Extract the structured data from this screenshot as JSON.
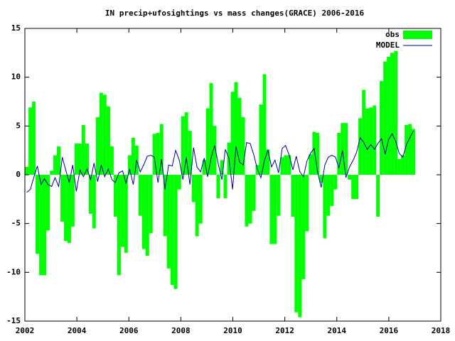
{
  "chart_data": {
    "type": "bar",
    "title": "IN precip+ufosightings vs mass changes(GRACE) 2006-2016",
    "x": [
      2002.07,
      2002.21,
      2002.34,
      2002.48,
      2002.62,
      2002.75,
      2002.89,
      2003.03,
      2003.16,
      2003.3,
      2003.44,
      2003.57,
      2003.71,
      2003.84,
      2003.98,
      2004.12,
      2004.25,
      2004.39,
      2004.53,
      2004.66,
      2004.8,
      2004.94,
      2005.07,
      2005.21,
      2005.35,
      2005.48,
      2005.62,
      2005.76,
      2005.89,
      2006.03,
      2006.17,
      2006.3,
      2006.44,
      2006.57,
      2006.71,
      2006.85,
      2006.98,
      2007.12,
      2007.26,
      2007.39,
      2007.53,
      2007.67,
      2007.8,
      2007.94,
      2008.08,
      2008.21,
      2008.35,
      2008.49,
      2008.62,
      2008.76,
      2008.9,
      2009.03,
      2009.17,
      2009.3,
      2009.44,
      2009.58,
      2009.71,
      2009.85,
      2009.99,
      2010.12,
      2010.26,
      2010.4,
      2010.53,
      2010.67,
      2010.81,
      2010.94,
      2011.08,
      2011.22,
      2011.35,
      2011.49,
      2011.62,
      2011.76,
      2011.9,
      2012.03,
      2012.17,
      2012.31,
      2012.44,
      2012.58,
      2012.72,
      2012.85,
      2012.99,
      2013.13,
      2013.26,
      2013.4,
      2013.54,
      2013.67,
      2013.81,
      2013.95,
      2014.08,
      2014.22,
      2014.35,
      2014.49,
      2014.63,
      2014.76,
      2014.9,
      2015.04,
      2015.17,
      2015.31,
      2015.45,
      2015.58,
      2015.72,
      2015.86,
      2015.99,
      2016.13,
      2016.27,
      2016.4,
      2016.54,
      2016.68,
      2016.81,
      2016.95
    ],
    "series": [
      {
        "name": "obs",
        "type": "bar",
        "color": "#00ff00",
        "values": [
          0.8,
          6.9,
          7.5,
          -8.1,
          -10.3,
          -10.3,
          -5.7,
          0.4,
          2.0,
          2.9,
          -4.8,
          -6.8,
          -7.0,
          -5.3,
          3.2,
          3.2,
          5.1,
          3.2,
          -4,
          -5.5,
          5.9,
          8.4,
          8.2,
          7.0,
          2.9,
          -4.3,
          -10.3,
          -7.4,
          -8.0,
          2,
          3.8,
          3.0,
          -4.2,
          -7.6,
          -8.3,
          -6,
          4.2,
          4.3,
          5.2,
          -6.3,
          -9.6,
          -11.3,
          -11.7,
          -1.5,
          6.0,
          6.4,
          4.5,
          -2.8,
          -6.3,
          -5,
          1.5,
          6.8,
          9.4,
          5,
          -2.4,
          1.5,
          -2.4,
          3.3,
          8.5,
          9.5,
          7.9,
          5.9,
          -5.3,
          -5,
          -3.7,
          1,
          7.2,
          10.3,
          2.6,
          -7.1,
          -7.1,
          -4.2,
          1.8,
          2.0,
          2.0,
          -4.3,
          -14.1,
          -14.6,
          -10.7,
          -5.8,
          2.1,
          4.4,
          4.3,
          -0.8,
          -6.5,
          -4.2,
          -3.2,
          -1.5,
          4.3,
          5.3,
          5.3,
          -0.5,
          -2.5,
          -2.5,
          5.8,
          8.7,
          6.8,
          6.9,
          7.1,
          -4.3,
          9.6,
          11.6,
          12.1,
          12.5,
          12.7,
          1.6,
          2.0,
          5.1,
          5.2,
          4.7
        ]
      },
      {
        "name": "MODEL",
        "type": "line",
        "color": "#0000a0",
        "values": [
          -1.8,
          -1.5,
          -0.3,
          0.9,
          -1,
          -0.4,
          -1,
          -1.2,
          -0.3,
          -1.2,
          1.8,
          0.5,
          -0.8,
          1.0,
          -1.7,
          0.5,
          -0.2,
          0.6,
          -0.5,
          1.2,
          -0.7,
          1.0,
          -0.2,
          0.6,
          -0.5,
          -0.8,
          0.2,
          0.4,
          -0.9,
          0.6,
          -1.0,
          1.5,
          0.3,
          1.0,
          1.9,
          2.0,
          1.8,
          -0.8,
          1.6,
          -1.5,
          1.0,
          0.9,
          2.5,
          1.5,
          -0.5,
          1.8,
          -1,
          2.8,
          0.8,
          0.3,
          1.7,
          -0.2,
          1.8,
          3.0,
          1.1,
          -0.5,
          2.6,
          1.7,
          -1.5,
          2.9,
          1.3,
          1.0,
          3.3,
          3.2,
          2.0,
          0.6,
          -0.3,
          1.5,
          2.5,
          0.8,
          1.5,
          0.2,
          2.7,
          3.0,
          2.0,
          0.5,
          1.9,
          0.3,
          -0.2,
          1.4,
          2.2,
          2.7,
          0.3,
          -1.3,
          1.0,
          1.8,
          2.0,
          1.8,
          0.7,
          2.5,
          -0.3,
          0.8,
          1.5,
          2.3,
          3.8,
          3.3,
          2.6,
          3.1,
          2.6,
          3.2,
          3.7,
          2.1,
          3.6,
          4.2,
          3.4,
          2.2,
          1.8,
          3.1,
          3.8,
          4.5
        ]
      }
    ],
    "xlim": [
      2002,
      2018
    ],
    "xticks": [
      2002,
      2004,
      2006,
      2008,
      2010,
      2012,
      2014,
      2016,
      2018
    ],
    "ylim": [
      -15,
      15
    ],
    "yticks": [
      -15,
      -10,
      -5,
      0,
      5,
      10,
      15
    ],
    "legend": "top-right"
  }
}
